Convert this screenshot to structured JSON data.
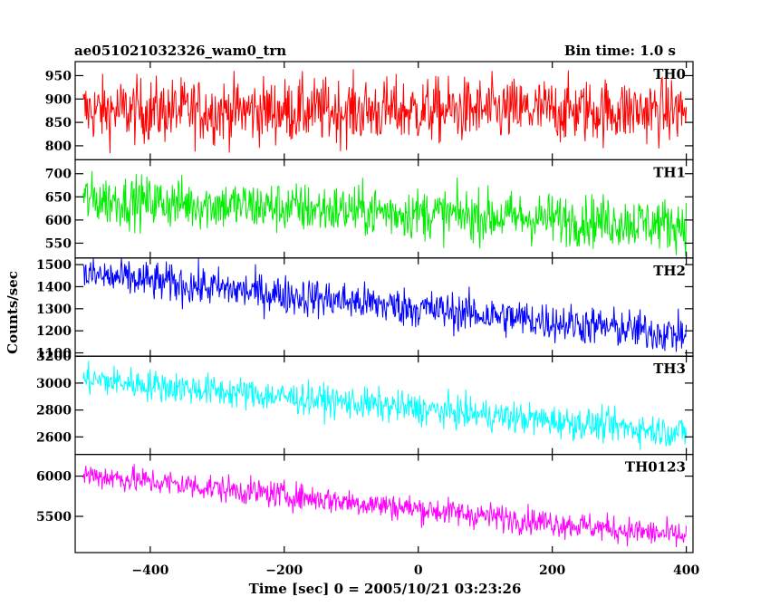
{
  "header": {
    "title": "ae051021032326_wam0_trn",
    "bin_time": "Bin time: 1.0 s"
  },
  "axes": {
    "ylabel": "Counts/sec",
    "xlabel": "Time [sec] 0 = 2005/10/21 03:23:26"
  },
  "chart_data": {
    "type": "line",
    "x": {
      "range": [
        -512,
        410
      ],
      "ticks": [
        -400,
        -200,
        0,
        200,
        400
      ],
      "tick_labels": [
        "−400",
        "−200",
        "0",
        "200",
        "400"
      ]
    },
    "panels": [
      {
        "name": "TH0",
        "color": "#ff0000",
        "ylim": [
          770,
          980
        ],
        "ticks": [
          800,
          850,
          900,
          950
        ],
        "tick_labels": [
          "800",
          "850",
          "900",
          "950"
        ],
        "level_start": 875,
        "level_end": 875,
        "noise": 35,
        "start": -500,
        "end": 400
      },
      {
        "name": "TH1",
        "color": "#00ee00",
        "ylim": [
          518,
          730
        ],
        "ticks": [
          550,
          600,
          650,
          700
        ],
        "tick_labels": [
          "550",
          "600",
          "650",
          "700"
        ],
        "level_start": 645,
        "level_end": 590,
        "noise": 28,
        "start": -500,
        "end": 400
      },
      {
        "name": "TH2",
        "color": "#0000ff",
        "ylim": [
          1085,
          1530
        ],
        "ticks": [
          1100,
          1200,
          1300,
          1400,
          1500
        ],
        "tick_labels": [
          "1100",
          "1200",
          "1300",
          "1400",
          "1500"
        ],
        "level_start": 1455,
        "level_end": 1180,
        "noise": 45,
        "start": -500,
        "end": 400
      },
      {
        "name": "TH3",
        "color": "#00ffff",
        "ylim": [
          2470,
          3200
        ],
        "ticks": [
          2600,
          2800,
          3000,
          3200
        ],
        "tick_labels": [
          "2600",
          "2800",
          "3000",
          "3200"
        ],
        "level_start": 3030,
        "level_end": 2630,
        "noise": 60,
        "start": -500,
        "end": 400
      },
      {
        "name": "TH0123",
        "color": "#ff00ff",
        "ylim": [
          5050,
          6270
        ],
        "ticks": [
          5500,
          6000
        ],
        "tick_labels": [
          "5500",
          "6000"
        ],
        "level_start": 6020,
        "level_end": 5250,
        "noise": 85,
        "start": -500,
        "end": 400
      }
    ]
  }
}
